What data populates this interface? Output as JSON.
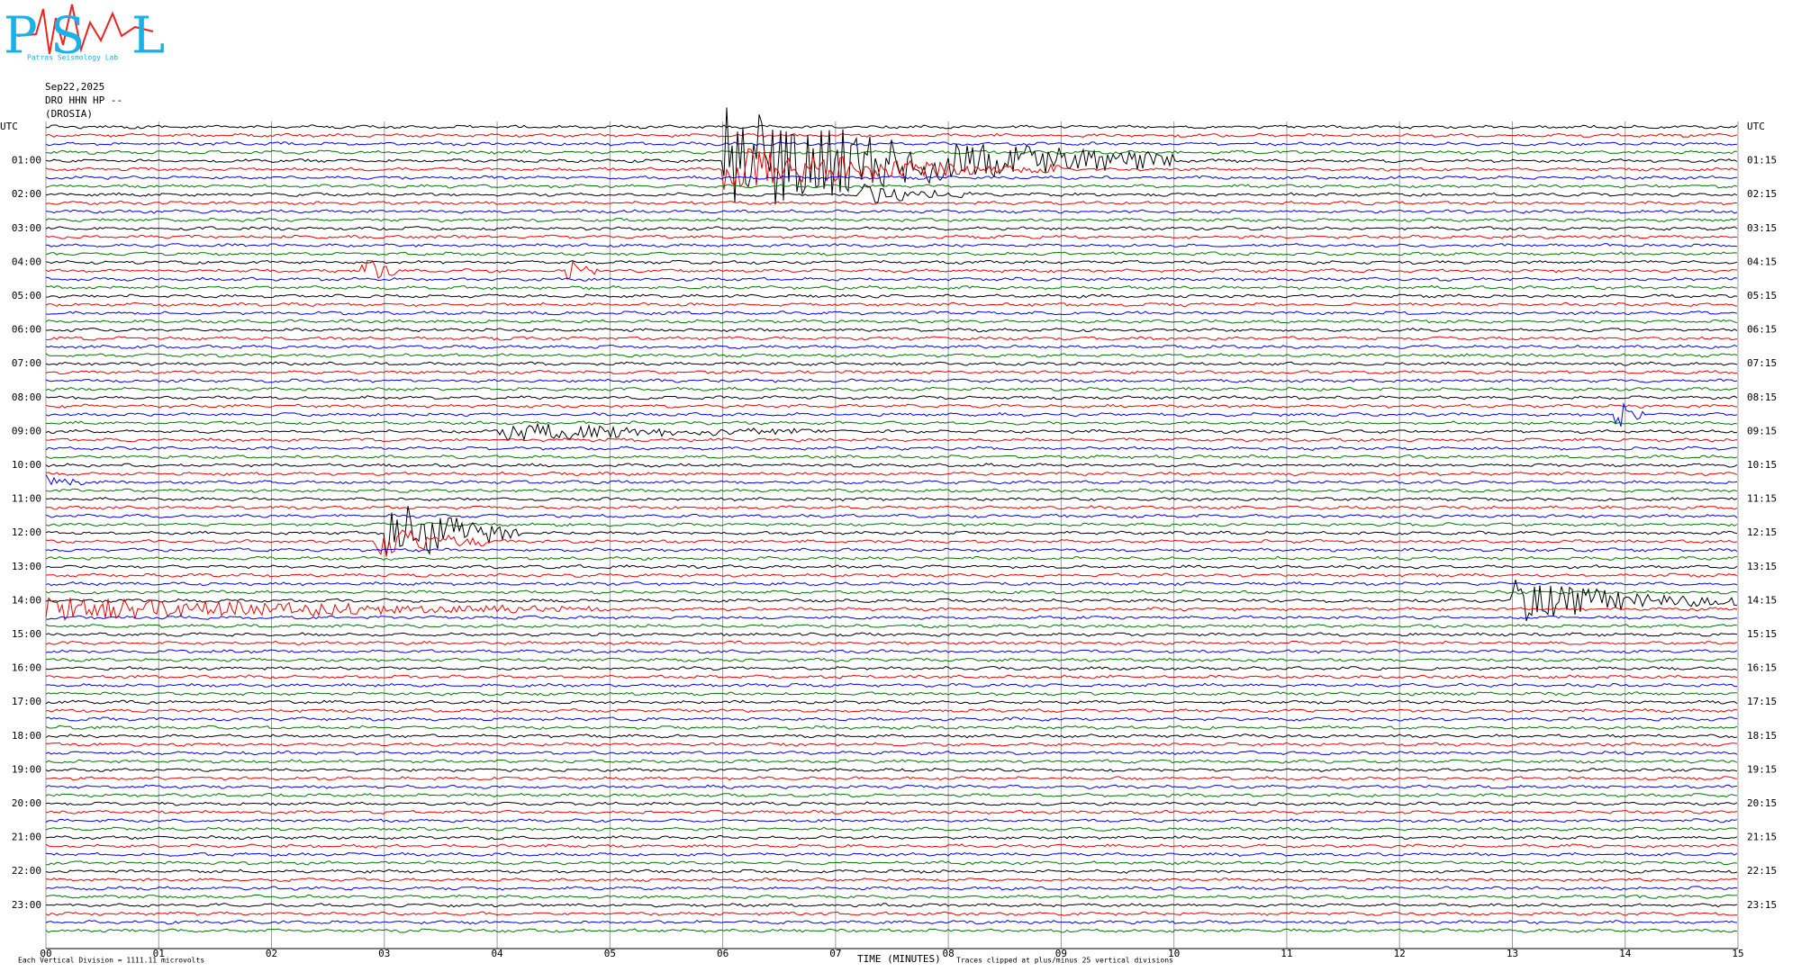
{
  "logo": {
    "letters": [
      "P",
      "S",
      "L"
    ],
    "caption": "Patras Seismology Lab"
  },
  "header": {
    "date": "Sep22,2025",
    "station": "DRO HHN HP --",
    "location": "(DROSIA)"
  },
  "left_labels": [
    "UTC",
    "01:00",
    "02:00",
    "03:00",
    "04:00",
    "05:00",
    "06:00",
    "07:00",
    "08:00",
    "09:00",
    "10:00",
    "11:00",
    "12:00",
    "13:00",
    "14:00",
    "15:00",
    "16:00",
    "17:00",
    "18:00",
    "19:00",
    "20:00",
    "21:00",
    "22:00",
    "23:00"
  ],
  "right_labels": [
    "UTC",
    "01:15",
    "02:15",
    "03:15",
    "04:15",
    "05:15",
    "06:15",
    "07:15",
    "08:15",
    "09:15",
    "10:15",
    "11:15",
    "12:15",
    "13:15",
    "14:15",
    "15:15",
    "16:15",
    "17:15",
    "18:15",
    "19:15",
    "20:15",
    "21:15",
    "22:15",
    "23:15"
  ],
  "x_ticks": [
    "00",
    "01",
    "02",
    "03",
    "04",
    "05",
    "06",
    "07",
    "08",
    "09",
    "10",
    "11",
    "12",
    "13",
    "14",
    "15"
  ],
  "footer": {
    "scale": "Each Vertical Division = 1111.11 microvolts",
    "axis_title": "TIME (MINUTES)",
    "clip_note": "Traces clipped at plus/minus 25 vertical divisions"
  }
}
